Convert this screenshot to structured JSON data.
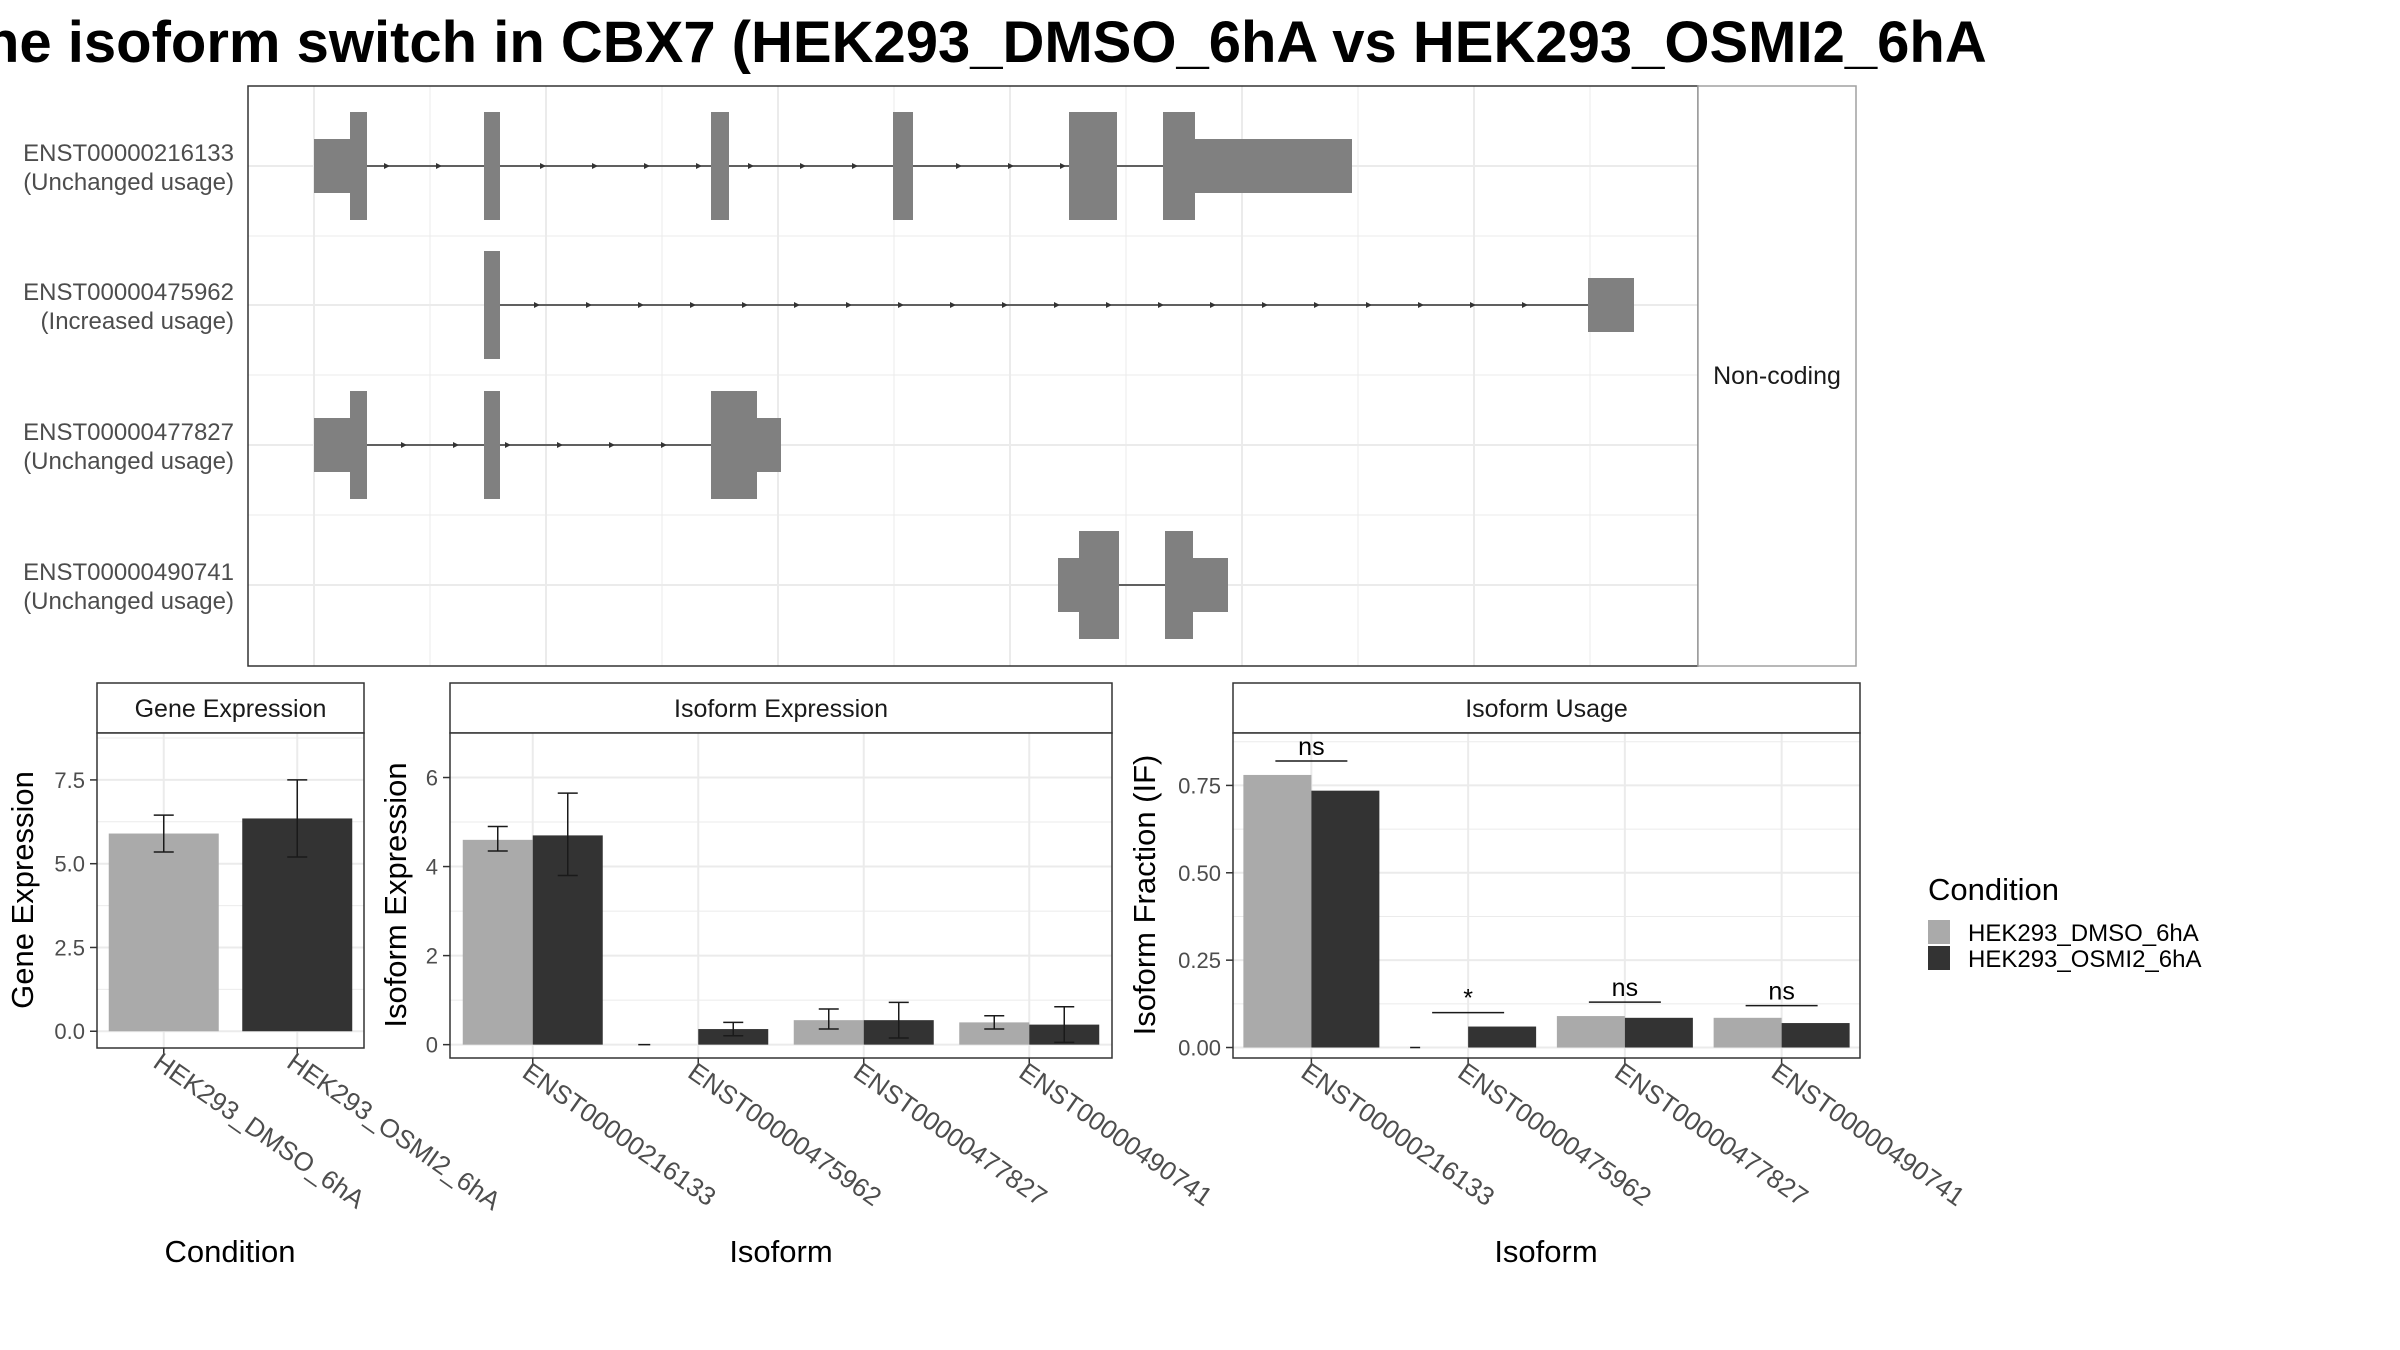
{
  "title": "he isoform switch in CBX7 (HEK293_DMSO_6hA vs HEK293_OSMI2_6hA",
  "colors": {
    "dmso": "#aaaaaa",
    "osmi2": "#333333",
    "exon": "#808080",
    "grid": "#ebebeb",
    "panel_border": "#333333",
    "strip_border": "#a0a0a0"
  },
  "legend": {
    "title": "Condition",
    "items": [
      {
        "label": "HEK293_DMSO_6hA",
        "color": "#aaaaaa"
      },
      {
        "label": "HEK293_OSMI2_6hA",
        "color": "#333333"
      }
    ]
  },
  "structure": {
    "facet_label": "Non-coding",
    "transcripts": [
      {
        "id": "ENST00000216133",
        "status": "(Unchanged usage)"
      },
      {
        "id": "ENST00000475962",
        "status": "(Increased usage)"
      },
      {
        "id": "ENST00000477827",
        "status": "(Unchanged usage)"
      },
      {
        "id": "ENST00000490741",
        "status": "(Unchanged usage)"
      }
    ]
  },
  "chart_data": [
    {
      "type": "bar",
      "panel": "Gene Expression",
      "xlabel": "Condition",
      "ylabel": "Gene Expression",
      "categories": [
        "HEK293_DMSO_6hA",
        "HEK293_OSMI2_6hA"
      ],
      "values": [
        5.9,
        6.35
      ],
      "error_low": [
        5.35,
        5.2
      ],
      "error_high": [
        6.45,
        7.5
      ],
      "ylim": [
        -0.5,
        8.9
      ],
      "yticks": [
        "0.0",
        "2.5",
        "5.0",
        "7.5"
      ],
      "grid": true
    },
    {
      "type": "bar",
      "panel": "Isoform Expression",
      "xlabel": "Isoform",
      "ylabel": "Isoform Expression",
      "categories": [
        "ENST00000216133",
        "ENST00000475962",
        "ENST00000477827",
        "ENST00000490741"
      ],
      "series": [
        {
          "name": "HEK293_DMSO_6hA",
          "values": [
            4.6,
            0.0,
            0.55,
            0.5
          ],
          "error_low": [
            4.35,
            0.0,
            0.35,
            0.35
          ],
          "error_high": [
            4.9,
            0.0,
            0.8,
            0.65
          ]
        },
        {
          "name": "HEK293_OSMI2_6hA",
          "values": [
            4.7,
            0.35,
            0.55,
            0.45
          ],
          "error_low": [
            3.8,
            0.2,
            0.15,
            0.05
          ],
          "error_high": [
            5.65,
            0.5,
            0.95,
            0.85
          ]
        }
      ],
      "ylim": [
        -0.3,
        7.0
      ],
      "yticks": [
        "0",
        "2",
        "4",
        "6"
      ],
      "grid": true
    },
    {
      "type": "bar",
      "panel": "Isoform Usage",
      "xlabel": "Isoform",
      "ylabel": "Isoform Fraction (IF)",
      "categories": [
        "ENST00000216133",
        "ENST00000475962",
        "ENST00000477827",
        "ENST00000490741"
      ],
      "series": [
        {
          "name": "HEK293_DMSO_6hA",
          "values": [
            0.78,
            0.0,
            0.09,
            0.085
          ]
        },
        {
          "name": "HEK293_OSMI2_6hA",
          "values": [
            0.735,
            0.06,
            0.085,
            0.07
          ]
        }
      ],
      "significance": [
        "ns",
        "*",
        "ns",
        "ns"
      ],
      "sig_y": [
        0.82,
        0.1,
        0.13,
        0.12
      ],
      "ylim": [
        -0.03,
        0.9
      ],
      "yticks": [
        "0.00",
        "0.25",
        "0.50",
        "0.75"
      ],
      "grid": true
    }
  ]
}
